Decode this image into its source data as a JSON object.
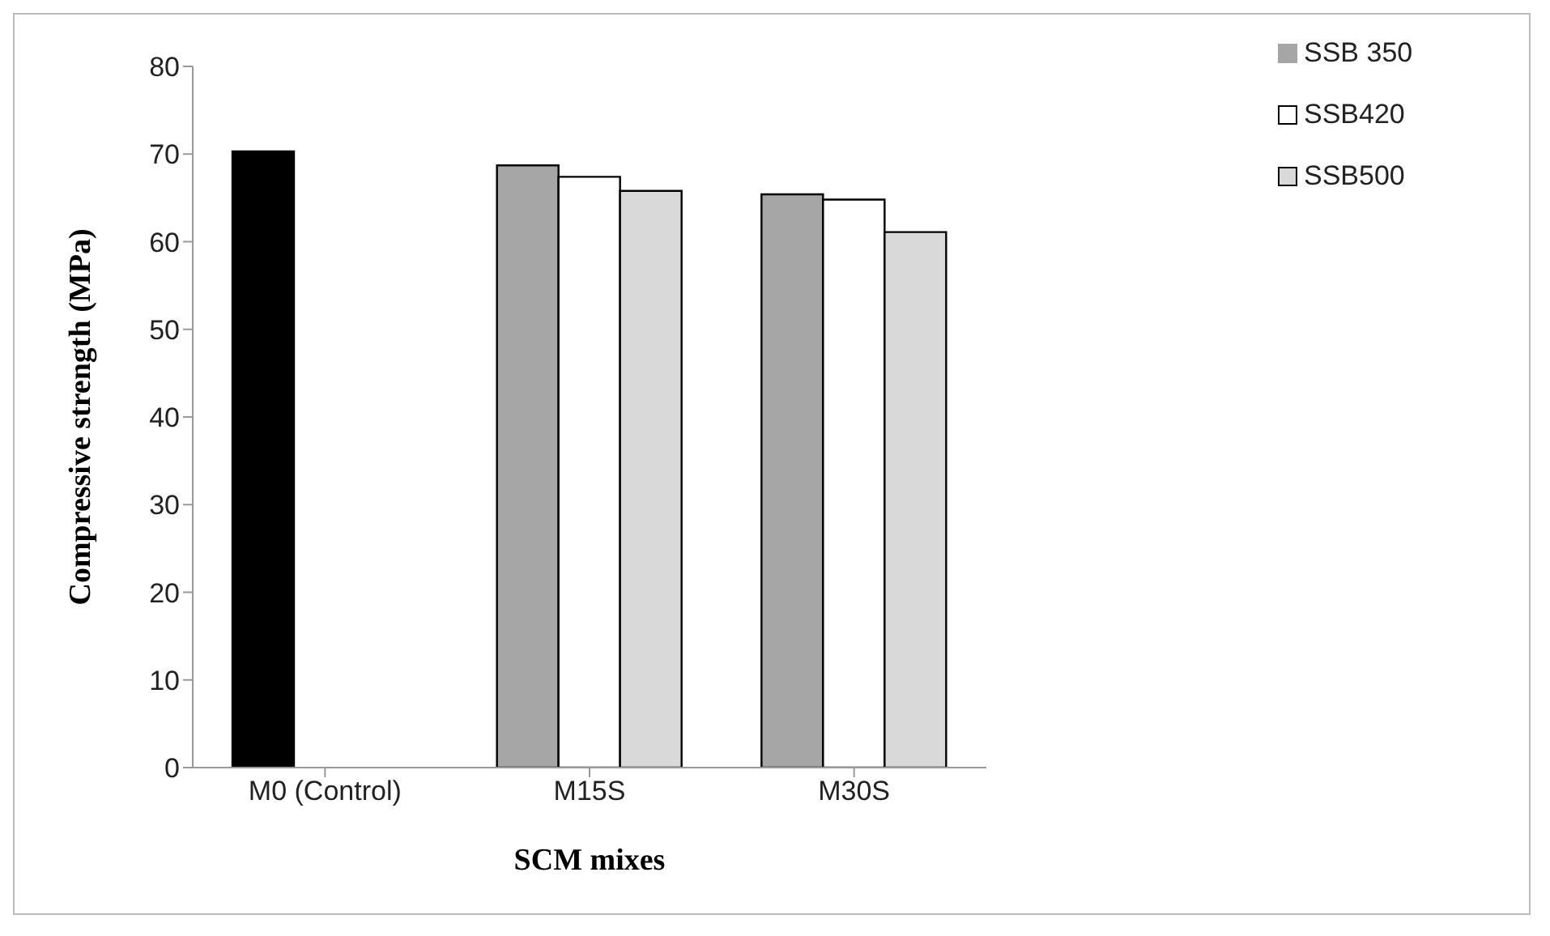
{
  "chart_data": {
    "type": "bar",
    "xlabel": "SCM  mixes",
    "ylabel": "Compressive strength (MPa)",
    "categories": [
      "M0 (Control)",
      "M15S",
      "M30S"
    ],
    "series": [
      {
        "name": "SSB 350",
        "color": "#a6a6a6",
        "colors": [
          "#000000",
          "#a6a6a6",
          "#a6a6a6"
        ],
        "values": [
          70.3,
          68.7,
          65.4
        ]
      },
      {
        "name": "SSB420",
        "color": "#ffffff",
        "values": [
          null,
          67.4,
          64.8
        ]
      },
      {
        "name": "SSB500",
        "color": "#d9d9d9",
        "values": [
          null,
          65.8,
          61.1
        ]
      }
    ],
    "ylim": [
      0,
      80
    ],
    "yticks": [
      0,
      10,
      20,
      30,
      40,
      50,
      60,
      70,
      80
    ],
    "legend": "top right"
  }
}
